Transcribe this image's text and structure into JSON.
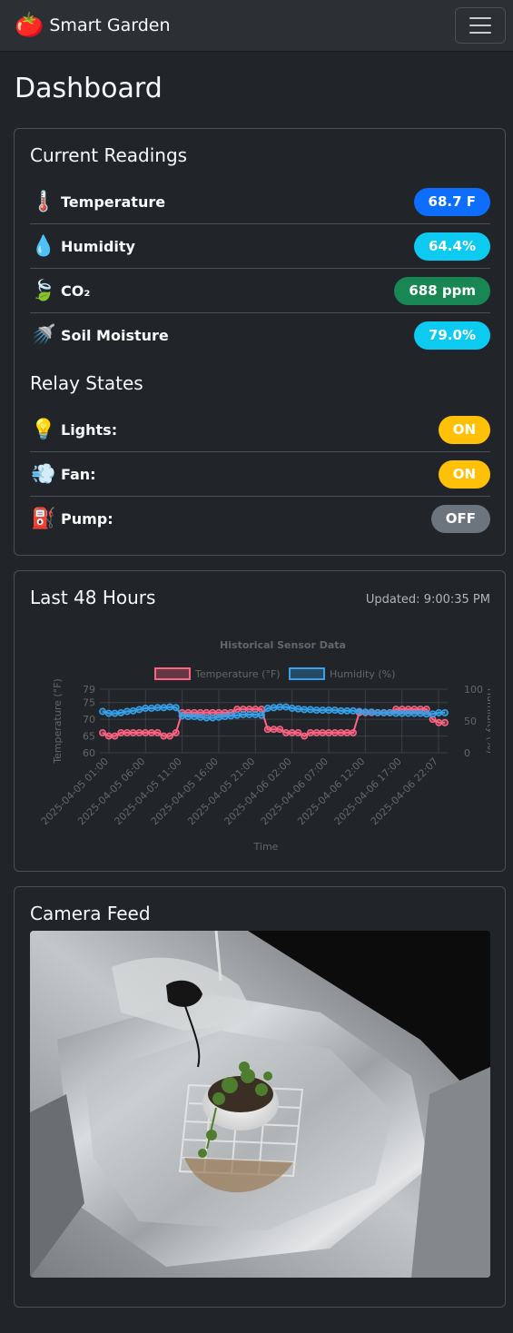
{
  "navbar": {
    "logo_icon": "tomato-emoji",
    "logo_glyph": "🍅",
    "title": "Smart Garden",
    "menu_icon": "hamburger-icon"
  },
  "page_title": "Dashboard",
  "readings": {
    "title": "Current Readings",
    "items": [
      {
        "icon": "thermometer-icon",
        "glyph": "🌡️",
        "label": "Temperature",
        "value": "68.7 F",
        "color": "#0d6efd",
        "text_color": "#ffffff"
      },
      {
        "icon": "droplet-icon",
        "glyph": "💧",
        "label": "Humidity",
        "value": "64.4%",
        "color": "#0dcaf0",
        "text_color": "#ffffff"
      },
      {
        "icon": "leaf-icon",
        "glyph": "🍃",
        "label": "CO₂",
        "value": "688 ppm",
        "color": "#198754",
        "text_color": "#ffffff"
      },
      {
        "icon": "shower-icon",
        "glyph": "🚿",
        "label": "Soil Moisture",
        "value": "79.0%",
        "color": "#0dcaf0",
        "text_color": "#ffffff"
      }
    ]
  },
  "relays": {
    "title": "Relay States",
    "items": [
      {
        "icon": "lightbulb-icon",
        "glyph": "💡",
        "label": "Lights:",
        "value": "ON",
        "color": "#ffc107",
        "text_color": "#ffffff"
      },
      {
        "icon": "wind-icon",
        "glyph": "💨",
        "label": "Fan:",
        "value": "ON",
        "color": "#ffc107",
        "text_color": "#ffffff"
      },
      {
        "icon": "fuel-pump-icon",
        "glyph": "⛽",
        "label": "Pump:",
        "value": "OFF",
        "color": "#6c757d",
        "text_color": "#ffffff"
      }
    ]
  },
  "history": {
    "title": "Last 48 Hours",
    "updated": "Updated: 9:00:35 PM"
  },
  "chart_data": {
    "type": "line",
    "title": "Historical Sensor Data",
    "xlabel": "Time",
    "ylabel_left": "Temperature (°F)",
    "ylabel_right": "Humidity (%)",
    "yleft_ticks": [
      "60",
      "65",
      "70",
      "75",
      "79"
    ],
    "yleft_lim": [
      60,
      79
    ],
    "yright_ticks": [
      "0",
      "50",
      "100"
    ],
    "yright_lim": [
      0,
      100
    ],
    "x_ticks": [
      "2025-04-05 01:00",
      "2025-04-05 06:00",
      "2025-04-05 11:00",
      "2025-04-05 16:00",
      "2025-04-05 21:00",
      "2025-04-06 02:00",
      "2025-04-06 07:00",
      "2025-04-06 12:00",
      "2025-04-06 17:00",
      "2025-04-06 22:07"
    ],
    "legend": "top",
    "series": [
      {
        "name": "Temperature (°F)",
        "axis": "left",
        "color": "#ff6384",
        "values": [
          66,
          65,
          65,
          66,
          66,
          66,
          66,
          66,
          66,
          66,
          65,
          65,
          66,
          72,
          72,
          72,
          72,
          72,
          72,
          72,
          72,
          72,
          73,
          73,
          73,
          73,
          73,
          67,
          67,
          67,
          66,
          66,
          66,
          65,
          66,
          66,
          66,
          66,
          66,
          66,
          66,
          66,
          72,
          72,
          72,
          72,
          72,
          72,
          73,
          73,
          73,
          73,
          73,
          73,
          70,
          69,
          69
        ]
      },
      {
        "name": "Humidity (%)",
        "axis": "right",
        "color": "#36a2eb",
        "values": [
          65,
          62,
          62,
          63,
          65,
          66,
          68,
          70,
          70,
          71,
          71,
          72,
          71,
          58,
          57,
          57,
          56,
          55,
          55,
          56,
          57,
          58,
          59,
          60,
          60,
          60,
          59,
          70,
          71,
          72,
          72,
          70,
          69,
          68,
          68,
          67,
          67,
          67,
          67,
          66,
          66,
          66,
          65,
          64,
          64,
          63,
          63,
          63,
          62,
          62,
          62,
          62,
          62,
          61,
          61,
          63,
          63
        ]
      }
    ]
  },
  "camera": {
    "title": "Camera Feed"
  }
}
